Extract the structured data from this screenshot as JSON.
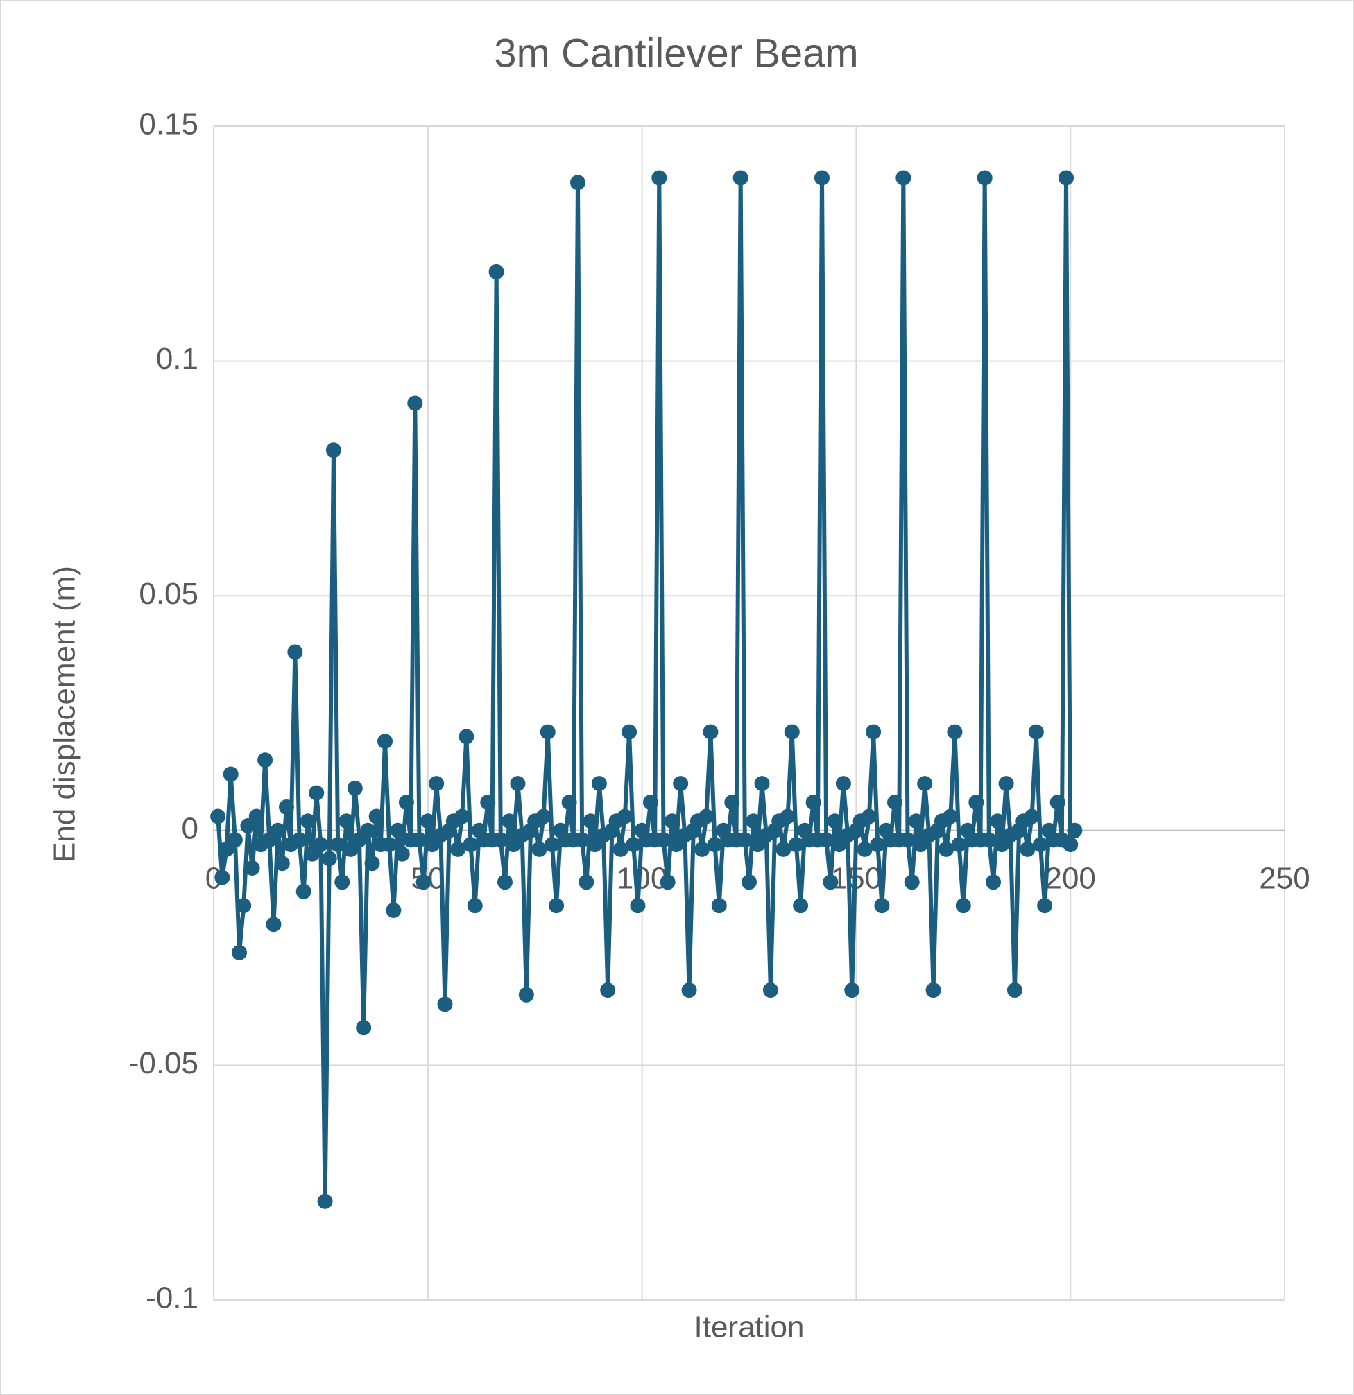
{
  "chart_data": {
    "type": "line",
    "title": "3m Cantilever Beam",
    "x_label": "Iteration",
    "y_label": "End displacement (m)",
    "x": [
      1,
      2,
      3,
      4,
      5,
      6,
      7,
      8,
      9,
      10,
      11,
      12,
      13,
      14,
      15,
      16,
      17,
      18,
      19,
      20,
      21,
      22,
      23,
      24,
      25,
      26,
      27,
      28,
      29,
      30,
      31,
      32,
      33,
      34,
      35,
      36,
      37,
      38,
      39,
      40,
      41,
      42,
      43,
      44,
      45,
      46,
      47,
      48,
      49,
      50,
      51,
      52,
      53,
      54,
      55,
      56,
      57,
      58,
      59,
      60,
      61,
      62,
      63,
      64,
      65,
      66,
      67,
      68,
      69,
      70,
      71,
      72,
      73,
      74,
      75,
      76,
      77,
      78,
      79,
      80,
      81,
      82,
      83,
      84,
      85,
      86,
      87,
      88,
      89,
      90,
      91,
      92,
      93,
      94,
      95,
      96,
      97,
      98,
      99,
      100,
      101,
      102,
      103,
      104,
      105,
      106,
      107,
      108,
      109,
      110,
      111,
      112,
      113,
      114,
      115,
      116,
      117,
      118,
      119,
      120,
      121,
      122,
      123,
      124,
      125,
      126,
      127,
      128,
      129,
      130,
      131,
      132,
      133,
      134,
      135,
      136,
      137,
      138,
      139,
      140,
      141,
      142,
      143,
      144,
      145,
      146,
      147,
      148,
      149,
      150,
      151,
      152,
      153,
      154,
      155,
      156,
      157,
      158,
      159,
      160,
      161,
      162,
      163,
      164,
      165,
      166,
      167,
      168,
      169,
      170,
      171,
      172,
      173,
      174,
      175,
      176,
      177,
      178,
      179,
      180,
      181,
      182,
      183,
      184,
      185,
      186,
      187,
      188,
      189,
      190,
      191,
      192,
      193,
      194,
      195,
      196,
      197,
      198,
      199,
      200,
      201
    ],
    "series": [
      {
        "name": "End displacement",
        "color": "#1b5e80",
        "values": [
          0.003,
          -0.01,
          -0.004,
          0.012,
          -0.002,
          -0.026,
          -0.016,
          0.001,
          -0.008,
          0.003,
          -0.003,
          0.015,
          -0.002,
          -0.02,
          0.0,
          -0.007,
          0.005,
          -0.003,
          0.038,
          -0.002,
          -0.013,
          0.002,
          -0.005,
          0.008,
          -0.003,
          -0.079,
          -0.006,
          0.081,
          -0.003,
          -0.011,
          0.002,
          -0.004,
          0.009,
          -0.002,
          -0.042,
          0.0,
          -0.007,
          0.003,
          -0.003,
          0.019,
          -0.003,
          -0.017,
          0.0,
          -0.005,
          0.006,
          -0.002,
          0.091,
          -0.002,
          -0.011,
          0.002,
          -0.003,
          0.01,
          -0.001,
          -0.037,
          0.0,
          0.002,
          -0.004,
          0.003,
          0.02,
          -0.003,
          -0.016,
          0.0,
          -0.002,
          0.006,
          -0.002,
          0.119,
          -0.002,
          -0.011,
          0.002,
          -0.003,
          0.01,
          -0.001,
          -0.035,
          0.0,
          0.002,
          -0.004,
          0.003,
          0.021,
          -0.003,
          -0.016,
          0.0,
          -0.002,
          0.006,
          -0.002,
          0.138,
          -0.002,
          -0.011,
          0.002,
          -0.003,
          0.01,
          -0.001,
          -0.034,
          0.0,
          0.002,
          -0.004,
          0.003,
          0.021,
          -0.003,
          -0.016,
          0.0,
          -0.002,
          0.006,
          -0.002,
          0.139,
          -0.002,
          -0.011,
          0.002,
          -0.003,
          0.01,
          -0.001,
          -0.034,
          0.0,
          0.002,
          -0.004,
          0.003,
          0.021,
          -0.003,
          -0.016,
          0.0,
          -0.002,
          0.006,
          -0.002,
          0.139,
          -0.002,
          -0.011,
          0.002,
          -0.003,
          0.01,
          -0.001,
          -0.034,
          0.0,
          0.002,
          -0.004,
          0.003,
          0.021,
          -0.003,
          -0.016,
          0.0,
          -0.002,
          0.006,
          -0.002,
          0.139,
          -0.002,
          -0.011,
          0.002,
          -0.003,
          0.01,
          -0.001,
          -0.034,
          0.0,
          0.002,
          -0.004,
          0.003,
          0.021,
          -0.003,
          -0.016,
          0.0,
          -0.002,
          0.006,
          -0.002,
          0.139,
          -0.002,
          -0.011,
          0.002,
          -0.003,
          0.01,
          -0.001,
          -0.034,
          0.0,
          0.002,
          -0.004,
          0.003,
          0.021,
          -0.003,
          -0.016,
          0.0,
          -0.002,
          0.006,
          -0.002,
          0.139,
          -0.002,
          -0.011,
          0.002,
          -0.003,
          0.01,
          -0.001,
          -0.034,
          0.0,
          0.002,
          -0.004,
          0.003,
          0.021,
          -0.003,
          -0.016,
          0.0,
          -0.002,
          0.006,
          -0.002,
          0.139,
          -0.003,
          0.0
        ]
      }
    ],
    "xlim": [
      0,
      250
    ],
    "xticks": [
      0,
      50,
      100,
      150,
      200,
      250
    ],
    "ylim": [
      -0.1,
      0.15
    ],
    "yticks": [
      -0.1,
      -0.05,
      0,
      0.05,
      0.1,
      0.15
    ],
    "grid": true,
    "markers": true
  }
}
